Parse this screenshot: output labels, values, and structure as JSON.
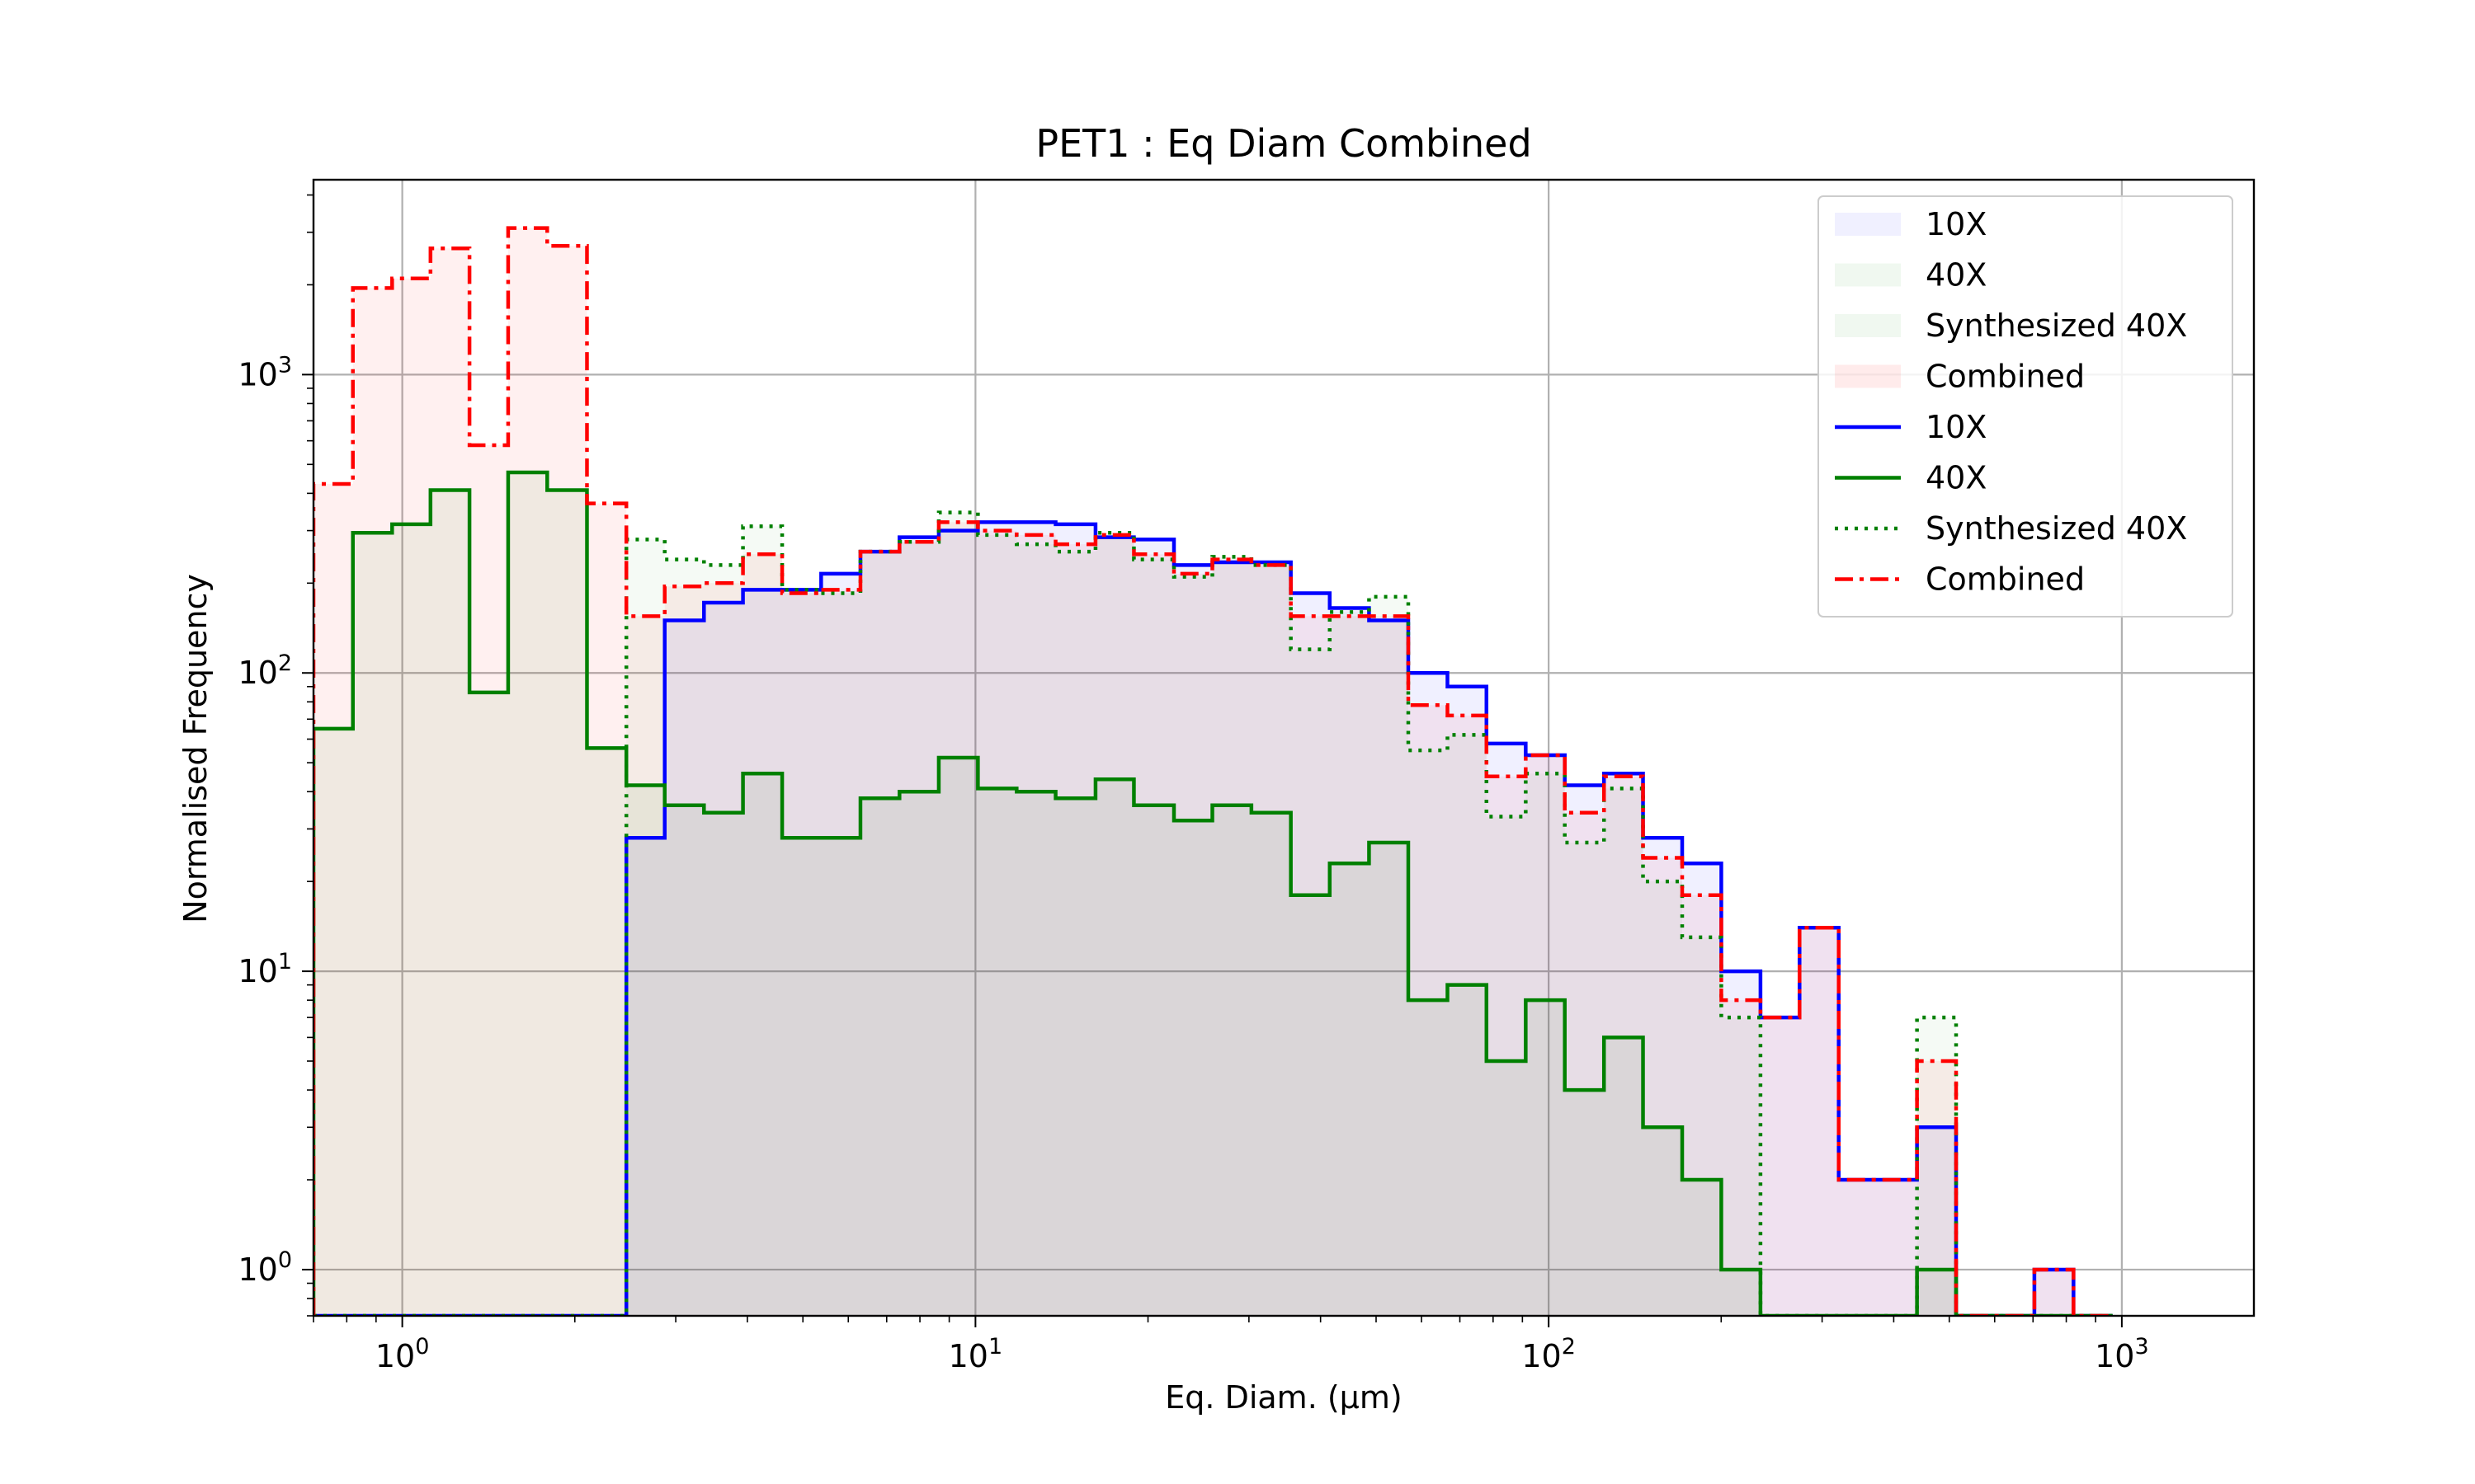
{
  "chart_data": {
    "type": "histogram",
    "title": "PET1 : Eq Diam Combined",
    "xlabel": "Eq. Diam. (μm)",
    "ylabel": "Normalised Frequency",
    "xscale": "log",
    "yscale": "log",
    "xlim": [
      0.7,
      1700
    ],
    "ylim": [
      0.7,
      4500
    ],
    "grid": true,
    "legend_position": "top-right",
    "x_ticks": [
      {
        "value": 1,
        "base": "10",
        "exp": "0"
      },
      {
        "value": 10,
        "base": "10",
        "exp": "1"
      },
      {
        "value": 100,
        "base": "10",
        "exp": "2"
      },
      {
        "value": 1000,
        "base": "10",
        "exp": "3"
      }
    ],
    "y_ticks": [
      {
        "value": 1,
        "base": "10",
        "exp": "0"
      },
      {
        "value": 10,
        "base": "10",
        "exp": "1"
      },
      {
        "value": 100,
        "base": "10",
        "exp": "2"
      },
      {
        "value": 1000,
        "base": "10",
        "exp": "3"
      }
    ],
    "bin_edges": [
      0.7,
      0.82,
      0.96,
      1.12,
      1.31,
      1.53,
      1.79,
      2.1,
      2.46,
      2.87,
      3.36,
      3.93,
      4.6,
      5.38,
      6.3,
      7.37,
      8.63,
      10.1,
      11.8,
      13.8,
      16.2,
      18.9,
      22.2,
      25.9,
      30.3,
      35.5,
      41.5,
      48.6,
      56.9,
      66.6,
      77.9,
      91.2,
      106.7,
      124.9,
      146.1,
      171,
      200.1,
      234.2,
      274,
      320.7,
      375.3,
      439.2,
      513.9,
      601.4,
      703.8,
      823.6,
      963.8
    ],
    "series": [
      {
        "name": "10X",
        "color": "#0000ff",
        "linestyle": "solid",
        "fill": "rgba(0,0,255,0.06)",
        "values": [
          0,
          0,
          0,
          0,
          0,
          0,
          0,
          0,
          28,
          150,
          172,
          190,
          190,
          215,
          255,
          285,
          300,
          320,
          320,
          315,
          285,
          280,
          230,
          235,
          235,
          185,
          165,
          150,
          100,
          90,
          58,
          53,
          42,
          46,
          28,
          23,
          10,
          7,
          14,
          2,
          2,
          3,
          0,
          0,
          1,
          0
        ]
      },
      {
        "name": "40X",
        "color": "#008000",
        "linestyle": "solid",
        "fill": "rgba(0,128,0,0.06)",
        "values": [
          65,
          295,
          315,
          410,
          86,
          470,
          410,
          56,
          42,
          36,
          34,
          46,
          28,
          28,
          38,
          40,
          52,
          41,
          40,
          38,
          44,
          36,
          32,
          36,
          34,
          18,
          23,
          27,
          8,
          9,
          5,
          8,
          4,
          6,
          3,
          2,
          1,
          0,
          0,
          0,
          0,
          1,
          0,
          0,
          0,
          0
        ]
      },
      {
        "name": "Synthesized 40X",
        "color": "#008000",
        "linestyle": "dotted",
        "fill": "rgba(0,128,0,0.04)",
        "values": [
          0,
          0,
          0,
          0,
          0,
          0,
          0,
          0,
          280,
          240,
          230,
          310,
          190,
          185,
          255,
          275,
          345,
          290,
          270,
          255,
          295,
          240,
          210,
          245,
          230,
          120,
          160,
          180,
          55,
          62,
          33,
          46,
          27,
          41,
          20,
          13,
          7,
          0,
          0,
          0,
          0,
          7,
          0,
          0,
          0,
          0
        ]
      },
      {
        "name": "Combined",
        "color": "#ff0000",
        "linestyle": "dashdot",
        "fill": "rgba(255,0,0,0.06)",
        "values": [
          430,
          1950,
          2100,
          2650,
          580,
          3100,
          2700,
          370,
          155,
          195,
          200,
          250,
          185,
          190,
          255,
          275,
          320,
          300,
          290,
          270,
          290,
          250,
          215,
          240,
          230,
          155,
          155,
          155,
          78,
          72,
          45,
          53,
          34,
          45,
          24,
          18,
          8,
          7,
          14,
          2,
          2,
          5,
          0,
          0,
          1,
          0
        ]
      }
    ],
    "legend": [
      {
        "label": "10X",
        "kind": "patch",
        "color": "rgba(0,0,255,0.06)"
      },
      {
        "label": "40X",
        "kind": "patch",
        "color": "rgba(0,128,0,0.06)"
      },
      {
        "label": "Synthesized 40X",
        "kind": "patch",
        "color": "rgba(0,128,0,0.06)"
      },
      {
        "label": "Combined",
        "kind": "patch",
        "color": "rgba(255,0,0,0.08)"
      },
      {
        "label": "10X",
        "kind": "line",
        "color": "#0000ff",
        "linestyle": "solid"
      },
      {
        "label": "40X",
        "kind": "line",
        "color": "#008000",
        "linestyle": "solid"
      },
      {
        "label": "Synthesized 40X",
        "kind": "line",
        "color": "#008000",
        "linestyle": "dotted"
      },
      {
        "label": "Combined",
        "kind": "line",
        "color": "#ff0000",
        "linestyle": "dashdot"
      }
    ]
  }
}
